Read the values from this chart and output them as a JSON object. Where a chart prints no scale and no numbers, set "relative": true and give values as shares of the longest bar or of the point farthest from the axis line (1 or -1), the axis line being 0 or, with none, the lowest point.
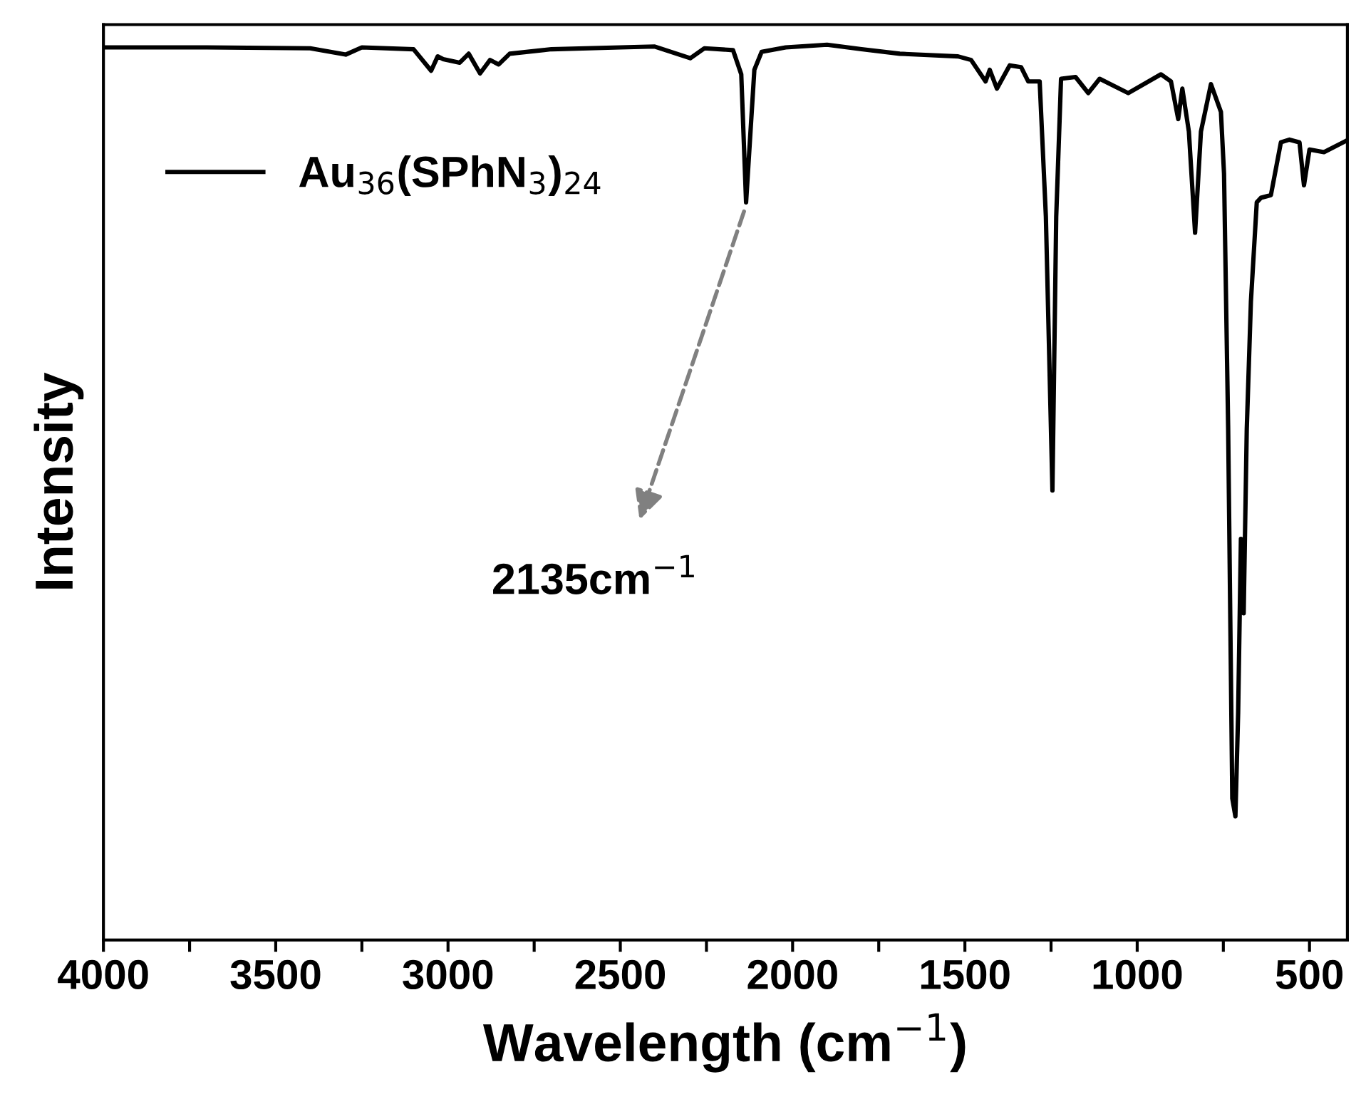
{
  "chart_data": {
    "type": "line",
    "relative": true,
    "xlabel": "Wavelength (cm$^{−1}$)",
    "ylabel": "Intensity",
    "xlim": [
      4000,
      390
    ],
    "xticks": [
      4000,
      {
        "value": 3750,
        "label": null
      },
      3500,
      {
        "value": 3250,
        "label": null
      },
      3000,
      {
        "value": 2750,
        "label": null
      },
      2500,
      {
        "value": 2250,
        "label": null
      },
      2000,
      {
        "value": 1750,
        "label": null
      },
      1500,
      {
        "value": 1250,
        "label": null
      },
      1000,
      {
        "value": 750,
        "label": null
      },
      500
    ],
    "tick_labels": "x",
    "grid": false,
    "legend": "top left",
    "marker": "none",
    "line_style": "solid",
    "annotations": [
      "2135cm$^{−1}$"
    ],
    "x": [
      3996,
      3700,
      3400,
      3297,
      3250,
      3100,
      3049,
      3030,
      3014,
      2966,
      2940,
      2907,
      2878,
      2853,
      2821,
      2700,
      2500,
      2400,
      2297,
      2256,
      2173,
      2149,
      2135,
      2111,
      2090,
      2020,
      1900,
      1800,
      1689,
      1520,
      1482,
      1440,
      1428,
      1407,
      1370,
      1337,
      1316,
      1283,
      1265,
      1246,
      1235,
      1221,
      1179,
      1142,
      1109,
      1026,
      931,
      902,
      881,
      869,
      850,
      832,
      815,
      786,
      757,
      748,
      736,
      724,
      715,
      707,
      699,
      691,
      682,
      670,
      653,
      641,
      612,
      583,
      558,
      529,
      516,
      500,
      458,
      392
    ],
    "series": [
      {
        "name": "Au$_{36}$(SPhN$_{3}$)$_{24}$",
        "color": "#000000",
        "values": [
          0.997,
          0.997,
          0.996,
          0.989,
          0.997,
          0.995,
          0.971,
          0.987,
          0.984,
          0.98,
          0.99,
          0.968,
          0.983,
          0.978,
          0.99,
          0.995,
          0.997,
          0.998,
          0.985,
          0.996,
          0.994,
          0.967,
          0.824,
          0.972,
          0.992,
          0.997,
          1.0,
          0.995,
          0.99,
          0.987,
          0.983,
          0.959,
          0.972,
          0.951,
          0.977,
          0.975,
          0.959,
          0.959,
          0.808,
          0.502,
          0.808,
          0.962,
          0.964,
          0.946,
          0.962,
          0.946,
          0.967,
          0.959,
          0.917,
          0.951,
          0.903,
          0.79,
          0.903,
          0.956,
          0.925,
          0.856,
          0.571,
          0.158,
          0.138,
          0.254,
          0.448,
          0.365,
          0.571,
          0.713,
          0.824,
          0.829,
          0.832,
          0.891,
          0.894,
          0.891,
          0.843,
          0.883,
          0.88,
          0.893
        ]
      }
    ]
  }
}
